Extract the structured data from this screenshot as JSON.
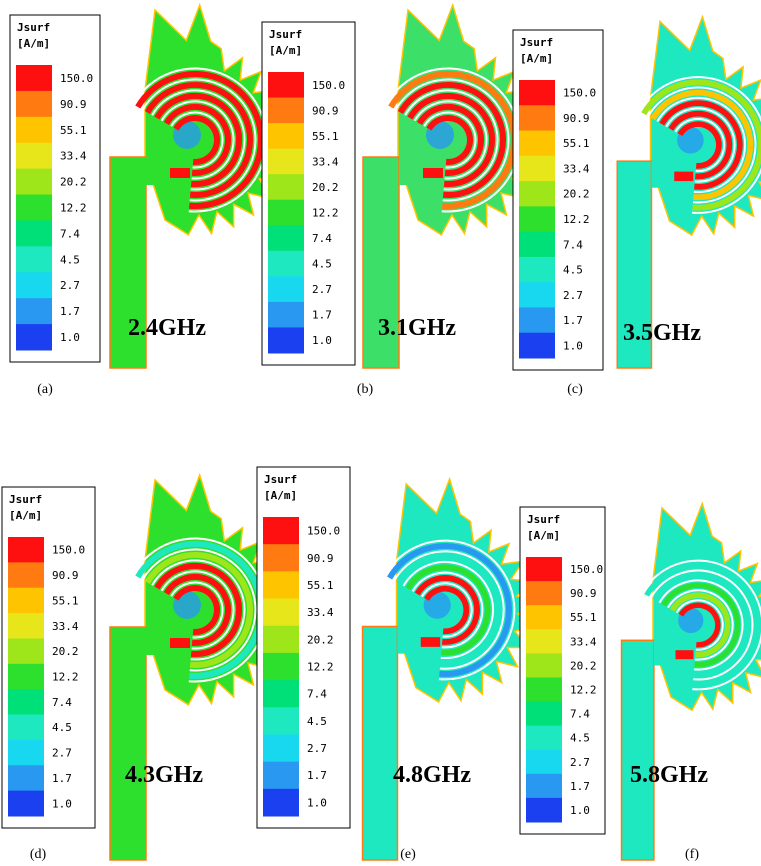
{
  "colorbar": {
    "title": "Jsurf",
    "unit": "[A/m]",
    "labels": [
      "150.0",
      "90.9",
      "55.1",
      "33.4",
      "20.2",
      "12.2",
      "7.4",
      "4.5",
      "2.7",
      "1.7",
      "1.0"
    ]
  },
  "panels": [
    {
      "frequency": "2.4GHz",
      "caption": "(a)"
    },
    {
      "frequency": "3.1GHz",
      "caption": "(b)"
    },
    {
      "frequency": "3.5GHz",
      "caption": "(c)"
    },
    {
      "frequency": "4.3GHz",
      "caption": "(d)"
    },
    {
      "frequency": "4.8GHz",
      "caption": "(e)"
    },
    {
      "frequency": "5.8GHz",
      "caption": "(f)"
    }
  ]
}
